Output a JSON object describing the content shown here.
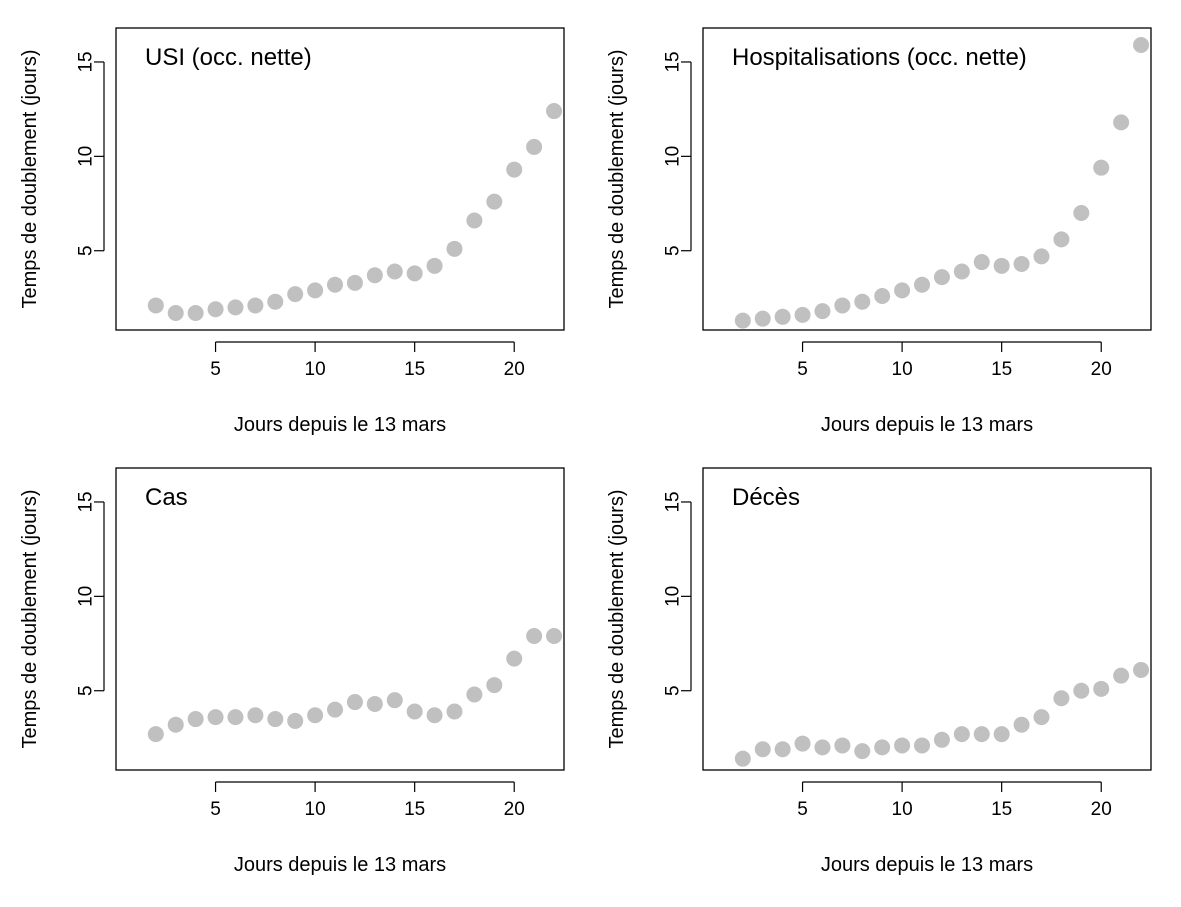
{
  "figure": {
    "x_axis_label": "Jours depuis le 13 mars",
    "y_axis_label": "Temps de doublement (jours)",
    "point_color": "#c0c0c0"
  },
  "chart_data": [
    {
      "type": "scatter",
      "title": "USI (occ. nette)",
      "xlabel": "Jours depuis le 13 mars",
      "ylabel": "Temps de doublement (jours)",
      "xlim": [
        0,
        22.5
      ],
      "ylim": [
        0.8,
        16.8
      ],
      "xticks": [
        5,
        10,
        15,
        20
      ],
      "yticks": [
        5,
        10,
        15
      ],
      "x": [
        2,
        3,
        4,
        5,
        6,
        7,
        8,
        9,
        10,
        11,
        12,
        13,
        14,
        15,
        16,
        17,
        18,
        19,
        20,
        21,
        22
      ],
      "y": [
        2.1,
        1.7,
        1.7,
        1.9,
        2.0,
        2.1,
        2.3,
        2.7,
        2.9,
        3.2,
        3.3,
        3.7,
        3.9,
        3.8,
        4.2,
        5.1,
        6.6,
        7.6,
        9.3,
        10.5,
        12.4
      ]
    },
    {
      "type": "scatter",
      "title": "Hospitalisations (occ. nette)",
      "xlabel": "Jours depuis le 13 mars",
      "ylabel": "Temps de doublement (jours)",
      "xlim": [
        0,
        22.5
      ],
      "ylim": [
        0.8,
        16.8
      ],
      "xticks": [
        5,
        10,
        15,
        20
      ],
      "yticks": [
        5,
        10,
        15
      ],
      "x": [
        2,
        3,
        4,
        5,
        6,
        7,
        8,
        9,
        10,
        11,
        12,
        13,
        14,
        15,
        16,
        17,
        18,
        19,
        20,
        21,
        22
      ],
      "y": [
        1.3,
        1.4,
        1.5,
        1.6,
        1.8,
        2.1,
        2.3,
        2.6,
        2.9,
        3.2,
        3.6,
        3.9,
        4.4,
        4.2,
        4.3,
        4.7,
        5.6,
        7.0,
        9.4,
        11.8,
        15.9
      ]
    },
    {
      "type": "scatter",
      "title": "Cas",
      "xlabel": "Jours depuis le 13 mars",
      "ylabel": "Temps de doublement (jours)",
      "xlim": [
        0,
        22.5
      ],
      "ylim": [
        0.8,
        16.8
      ],
      "xticks": [
        5,
        10,
        15,
        20
      ],
      "yticks": [
        5,
        10,
        15
      ],
      "x": [
        2,
        3,
        4,
        5,
        6,
        7,
        8,
        9,
        10,
        11,
        12,
        13,
        14,
        15,
        16,
        17,
        18,
        19,
        20,
        21,
        22
      ],
      "y": [
        2.7,
        3.2,
        3.5,
        3.6,
        3.6,
        3.7,
        3.5,
        3.4,
        3.7,
        4.0,
        4.4,
        4.3,
        4.5,
        3.9,
        3.7,
        3.9,
        4.8,
        5.3,
        6.7,
        7.9,
        7.9
      ]
    },
    {
      "type": "scatter",
      "title": "Décès",
      "xlabel": "Jours depuis le 13 mars",
      "ylabel": "Temps de doublement (jours)",
      "xlim": [
        0,
        22.5
      ],
      "ylim": [
        0.8,
        16.8
      ],
      "xticks": [
        5,
        10,
        15,
        20
      ],
      "yticks": [
        5,
        10,
        15
      ],
      "x": [
        2,
        3,
        4,
        5,
        6,
        7,
        8,
        9,
        10,
        11,
        12,
        13,
        14,
        15,
        16,
        17,
        18,
        19,
        20,
        21,
        22
      ],
      "y": [
        1.4,
        1.9,
        1.9,
        2.2,
        2.0,
        2.1,
        1.8,
        2.0,
        2.1,
        2.1,
        2.4,
        2.7,
        2.7,
        2.7,
        3.2,
        3.6,
        4.6,
        5.0,
        5.1,
        5.8,
        6.1
      ]
    }
  ]
}
